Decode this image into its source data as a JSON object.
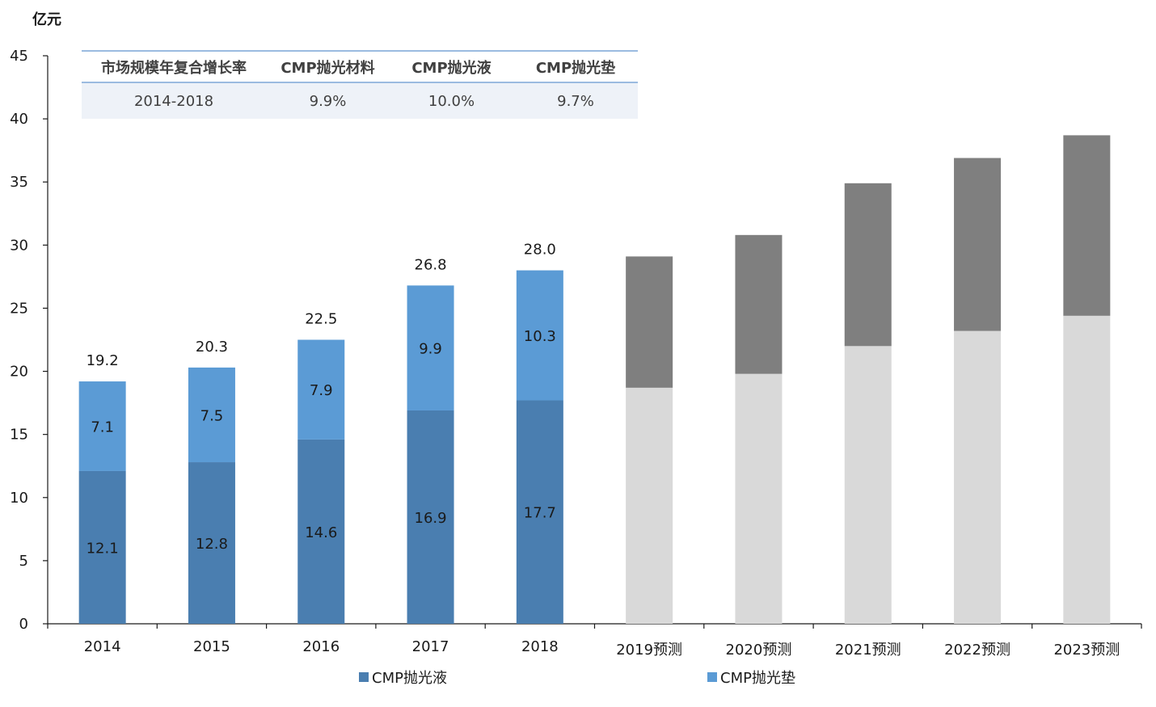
{
  "chart_data": {
    "type": "bar",
    "stacked": true,
    "ylabel": "亿元",
    "ylim": [
      0,
      45
    ],
    "yticks": [
      0,
      5,
      10,
      15,
      20,
      25,
      30,
      35,
      40,
      45
    ],
    "categories": [
      "2014",
      "2015",
      "2016",
      "2017",
      "2018",
      "2019预测",
      "2020预测",
      "2021预测",
      "2022预测",
      "2023预测"
    ],
    "series": [
      {
        "name": "CMP抛光液",
        "values": [
          12.1,
          12.8,
          14.6,
          16.9,
          17.7,
          18.7,
          19.8,
          22.0,
          23.2,
          24.4
        ],
        "color": "#4a7eb0",
        "forecast_color": "#d9d9d9",
        "data_labels": [
          "12.1",
          "12.8",
          "14.6",
          "16.9",
          "17.7",
          "",
          "",
          "",
          "",
          ""
        ]
      },
      {
        "name": "CMP抛光垫",
        "values": [
          7.1,
          7.5,
          7.9,
          9.9,
          10.3,
          10.4,
          11.0,
          12.9,
          13.7,
          14.3
        ],
        "color": "#5b9bd5",
        "forecast_color": "#7f7f7f",
        "data_labels": [
          "7.1",
          "7.5",
          "7.9",
          "9.9",
          "10.3",
          "",
          "",
          "",
          "",
          ""
        ]
      }
    ],
    "totals": [
      "19.2",
      "20.3",
      "22.5",
      "26.8",
      "28.0",
      "",
      "",
      "",
      "",
      ""
    ],
    "forecast_start_index": 5,
    "legend_position": "bottom",
    "grid": false
  },
  "cagr_table": {
    "headers": [
      "市场规模年复合增长率",
      "CMP抛光材料",
      "CMP抛光液",
      "CMP抛光垫"
    ],
    "row": [
      "2014-2018",
      "9.9%",
      "10.0%",
      "9.7%"
    ]
  }
}
